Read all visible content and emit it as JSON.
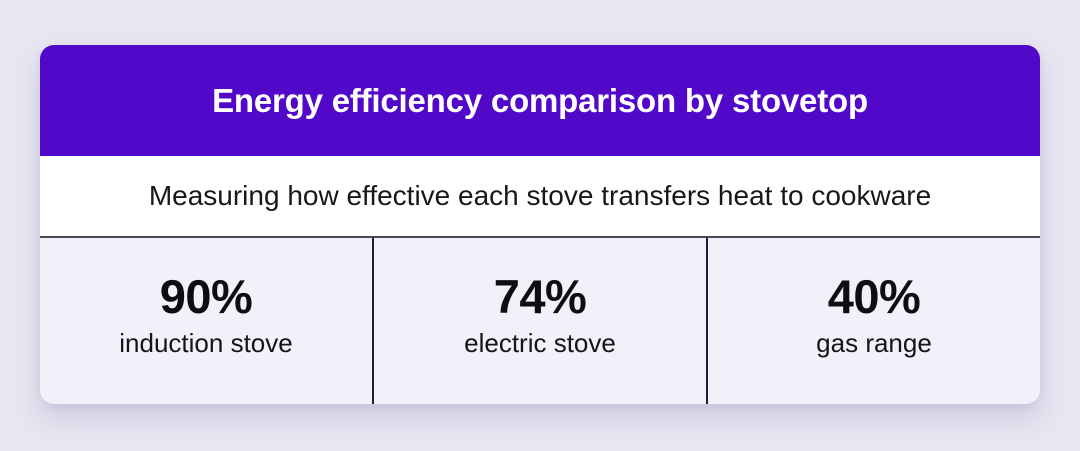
{
  "page": {
    "background_color": "#E9E6F2"
  },
  "card": {
    "header": {
      "title": "Energy efficiency comparison by stovetop",
      "background_color": "#5208C9",
      "text_color": "#FFFFFF"
    },
    "subtitle": "Measuring how effective each stove transfers heat to cookware",
    "stats": [
      {
        "value": "90%",
        "label": "induction stove"
      },
      {
        "value": "74%",
        "label": "electric stove"
      },
      {
        "value": "40%",
        "label": "gas range"
      }
    ],
    "colors": {
      "cell_background": "#F2F0F9",
      "top_rule": "#4A4A50",
      "column_divider": "#221C38",
      "stat_text": "#0E0E12"
    }
  },
  "chart_data": {
    "type": "table",
    "title": "Energy efficiency comparison by stovetop",
    "subtitle": "Measuring how effective each stove transfers heat to cookware",
    "categories": [
      "induction stove",
      "electric stove",
      "gas range"
    ],
    "values": [
      90,
      74,
      40
    ],
    "unit": "%",
    "value_labels": [
      "90%",
      "74%",
      "40%"
    ]
  }
}
